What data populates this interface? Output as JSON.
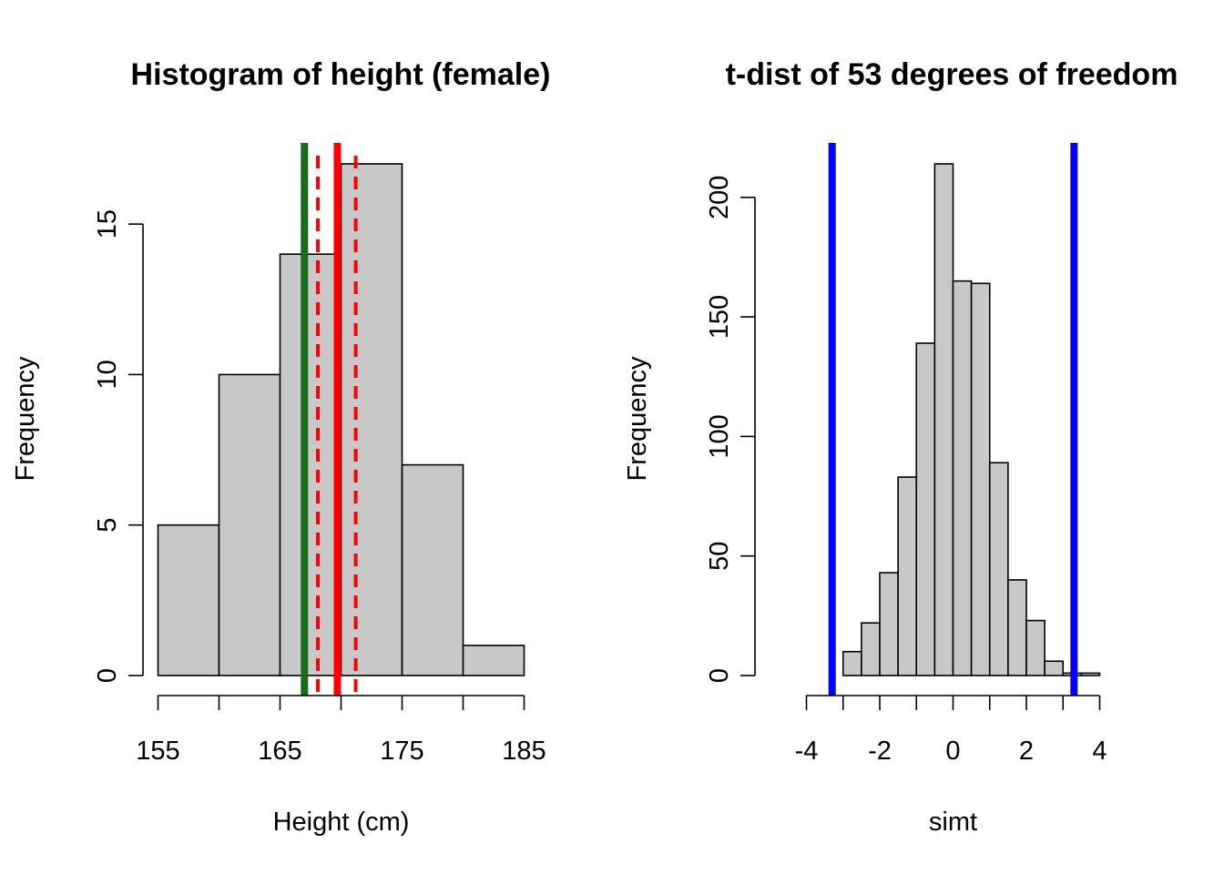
{
  "chart_data": [
    {
      "type": "bar",
      "title": "Histogram of height (female)",
      "xlabel": "Height (cm)",
      "ylabel": "Frequency",
      "bin_edges": [
        155,
        160,
        165,
        170,
        175,
        180,
        185
      ],
      "values": [
        5,
        10,
        14,
        17,
        7,
        1
      ],
      "xticks": [
        155,
        165,
        175,
        185
      ],
      "yticks": [
        0,
        5,
        10,
        15
      ],
      "xlim": [
        155,
        185
      ],
      "ylim": [
        0,
        17
      ],
      "vlines": [
        {
          "x": 167.0,
          "color": "#1a6b1a",
          "style": "solid"
        },
        {
          "x": 169.7,
          "color": "#ff0000",
          "style": "solid"
        },
        {
          "x": 168.1,
          "color": "#ff0000",
          "style": "dashed"
        },
        {
          "x": 171.2,
          "color": "#ff0000",
          "style": "dashed"
        }
      ]
    },
    {
      "type": "bar",
      "title": "t-dist of 53 degrees of freedom",
      "xlabel": "simt",
      "ylabel": "Frequency",
      "bin_edges": [
        -3.0,
        -2.5,
        -2.0,
        -1.5,
        -1.0,
        -0.5,
        0.0,
        0.5,
        1.0,
        1.5,
        2.0,
        2.5,
        3.0,
        3.5,
        4.0
      ],
      "values": [
        10,
        22,
        43,
        83,
        139,
        214,
        165,
        164,
        89,
        40,
        23,
        6,
        1,
        1
      ],
      "xticks": [
        -4,
        -2,
        0,
        2,
        4
      ],
      "yticks": [
        0,
        50,
        100,
        150,
        200
      ],
      "xlim": [
        -4,
        4
      ],
      "ylim": [
        0,
        214
      ],
      "vlines": [
        {
          "x": -3.3,
          "color": "#0000ff",
          "style": "solid"
        },
        {
          "x": 3.3,
          "color": "#0000ff",
          "style": "solid"
        }
      ]
    }
  ]
}
